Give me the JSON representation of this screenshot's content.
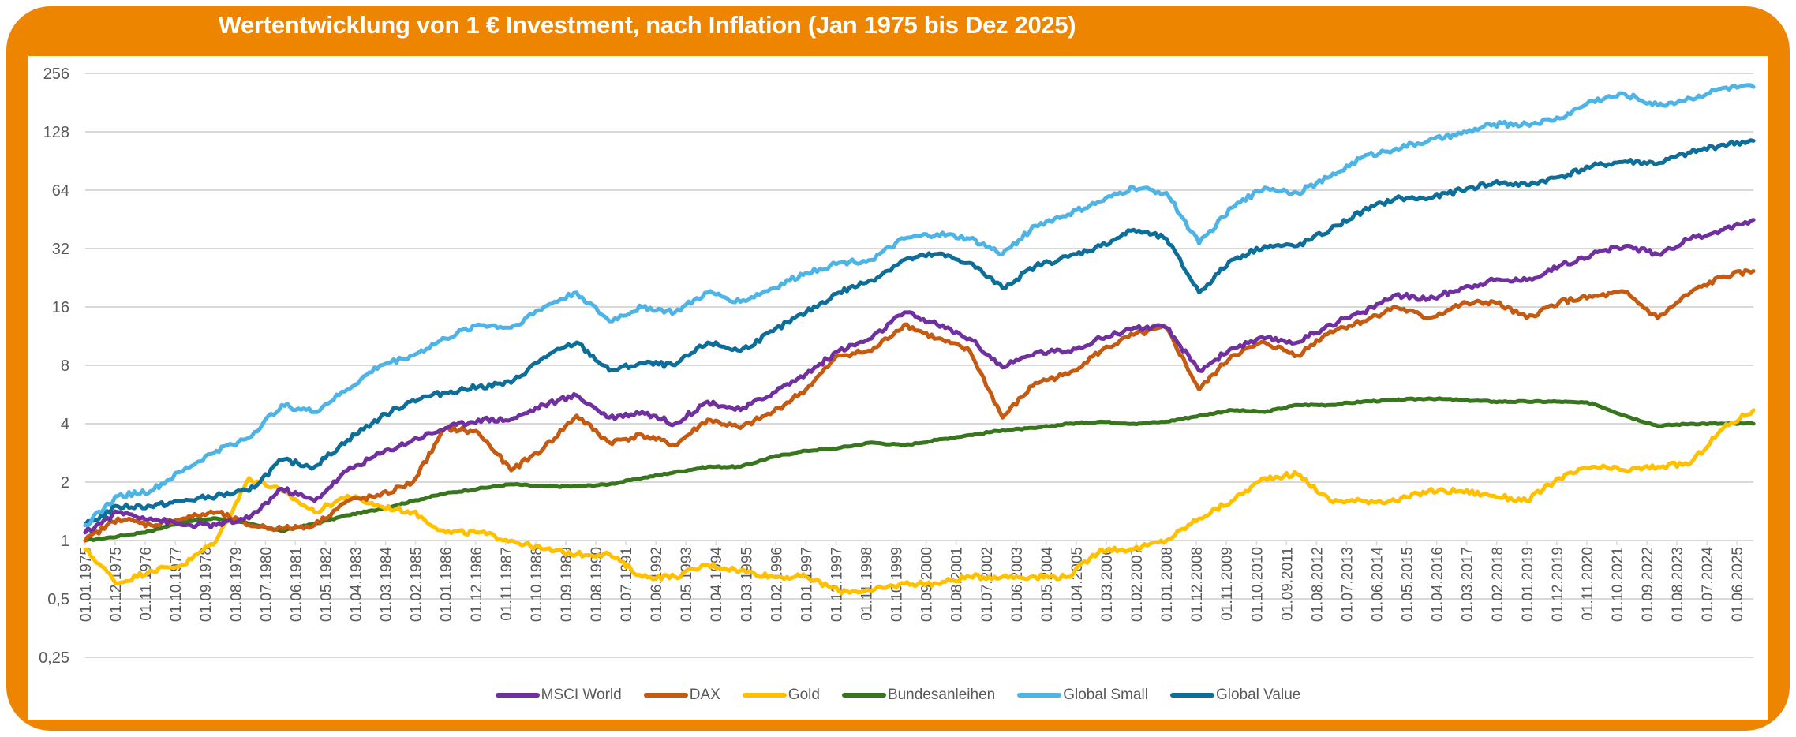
{
  "chart_data": {
    "type": "line",
    "title": "Wertentwicklung von 1 € Investment, nach Inflation (Jan 1975 bis Dez 2025)",
    "xlabel": "",
    "ylabel": "",
    "y_scale": "log2",
    "ylim": [
      0.25,
      256
    ],
    "y_ticks": [
      256,
      128,
      64,
      32,
      16,
      8,
      4,
      2,
      1,
      0.5,
      0.25
    ],
    "y_tick_labels": [
      "256",
      "128",
      "64",
      "32",
      "16",
      "8",
      "4",
      "2",
      "1",
      "0,5",
      "0,25"
    ],
    "x_start": "01.01.1975",
    "x_end": "01.12.2025",
    "x_tick_interval_months": 11,
    "x_tick_labels": [
      "01.01.1975",
      "01.12.1975",
      "01.11.1976",
      "01.10.1977",
      "01.09.1978",
      "01.08.1979",
      "01.07.1980",
      "01.06.1981",
      "01.05.1982",
      "01.04.1983",
      "01.03.1984",
      "01.02.1985",
      "01.01.1986",
      "01.12.1986",
      "01.11.1987",
      "01.10.1988",
      "01.09.1989",
      "01.08.1990",
      "01.07.1991",
      "01.06.1992",
      "01.05.1993",
      "01.04.1994",
      "01.03.1995",
      "01.02.1996",
      "01.01.1997",
      "01.12.1997",
      "01.11.1998",
      "01.10.1999",
      "01.09.2000",
      "01.08.2001",
      "01.07.2002",
      "01.06.2003",
      "01.05.2004",
      "01.04.2005",
      "01.03.2006",
      "01.02.2007",
      "01.01.2008",
      "01.12.2008",
      "01.11.2009",
      "01.10.2010",
      "01.09.2011",
      "01.08.2012",
      "01.07.2013",
      "01.06.2014",
      "01.05.2015",
      "01.04.2016",
      "01.03.2017",
      "01.02.2018",
      "01.01.2019",
      "01.12.2019",
      "01.11.2020",
      "01.10.2021",
      "01.09.2022",
      "01.08.2023",
      "01.07.2024",
      "01.06.2025"
    ],
    "x": [
      1975,
      1976,
      1977,
      1978,
      1979,
      1980,
      1981,
      1982,
      1983,
      1984,
      1985,
      1986,
      1987,
      1988,
      1989,
      1990,
      1991,
      1992,
      1993,
      1994,
      1995,
      1996,
      1997,
      1998,
      1999,
      2000,
      2001,
      2002,
      2003,
      2004,
      2005,
      2006,
      2007,
      2008,
      2009,
      2010,
      2011,
      2012,
      2013,
      2014,
      2015,
      2016,
      2017,
      2018,
      2019,
      2020,
      2021,
      2022,
      2023,
      2024,
      2025,
      2025.92
    ],
    "x_note": "annual samples (January of each year) plus December 2025",
    "grid": true,
    "legend_position": "bottom",
    "series": [
      {
        "name": "MSCI World",
        "color": "#7030A0",
        "values": [
          1.1,
          1.4,
          1.3,
          1.2,
          1.2,
          1.3,
          1.85,
          1.6,
          2.3,
          2.8,
          3.3,
          3.8,
          4.2,
          4.2,
          5.0,
          5.6,
          4.3,
          4.6,
          4.0,
          5.2,
          4.7,
          5.8,
          7.2,
          9.5,
          11,
          15,
          13,
          11,
          7.8,
          9.3,
          9.5,
          11,
          12.5,
          12.5,
          7.5,
          9.8,
          11,
          10.5,
          13,
          15,
          18.5,
          17.5,
          20,
          22,
          22,
          26,
          30,
          33,
          30,
          36,
          40,
          45
        ]
      },
      {
        "name": "DAX",
        "color": "#C55A11",
        "values": [
          1.0,
          1.3,
          1.2,
          1.3,
          1.4,
          1.2,
          1.15,
          1.2,
          1.6,
          1.7,
          2.0,
          3.8,
          3.6,
          2.3,
          3.0,
          4.4,
          3.2,
          3.5,
          3.1,
          4.2,
          3.8,
          4.6,
          6.0,
          9.0,
          9.5,
          13,
          11,
          9.5,
          4.3,
          6.5,
          7.2,
          9.5,
          11.5,
          12.5,
          6.0,
          9.0,
          10.5,
          9.0,
          12,
          13.5,
          16,
          14,
          16.5,
          17,
          14,
          17,
          18,
          19,
          14,
          19,
          23,
          24.5
        ]
      },
      {
        "name": "Gold",
        "color": "#FFC000",
        "values": [
          0.9,
          0.6,
          0.7,
          0.75,
          1.0,
          2.1,
          1.8,
          1.4,
          1.7,
          1.5,
          1.4,
          1.1,
          1.1,
          1.0,
          0.9,
          0.85,
          0.85,
          0.65,
          0.65,
          0.75,
          0.7,
          0.65,
          0.65,
          0.55,
          0.55,
          0.6,
          0.6,
          0.65,
          0.65,
          0.65,
          0.65,
          0.9,
          0.9,
          1.0,
          1.3,
          1.6,
          2.1,
          2.2,
          1.6,
          1.6,
          1.6,
          1.8,
          1.8,
          1.7,
          1.6,
          2.1,
          2.4,
          2.3,
          2.4,
          2.5,
          3.8,
          4.7
        ]
      },
      {
        "name": "Bundesanleihen",
        "color": "#38761D",
        "values": [
          1.0,
          1.05,
          1.12,
          1.25,
          1.3,
          1.22,
          1.12,
          1.22,
          1.35,
          1.45,
          1.6,
          1.75,
          1.85,
          1.95,
          1.9,
          1.9,
          1.95,
          2.1,
          2.25,
          2.4,
          2.4,
          2.7,
          2.9,
          3.0,
          3.2,
          3.1,
          3.3,
          3.5,
          3.7,
          3.8,
          4.0,
          4.1,
          4.0,
          4.1,
          4.4,
          4.7,
          4.6,
          5.0,
          5.0,
          5.2,
          5.3,
          5.4,
          5.3,
          5.2,
          5.2,
          5.2,
          5.1,
          4.4,
          3.9,
          4.0,
          4.0,
          4.0
        ]
      },
      {
        "name": "Global Small",
        "color": "#4EB3E5",
        "values": [
          1.2,
          1.7,
          1.8,
          2.3,
          2.9,
          3.4,
          5.0,
          4.6,
          6.0,
          8.0,
          9.0,
          11,
          13,
          12.5,
          16,
          19,
          13.5,
          16,
          15,
          19,
          17,
          20,
          24,
          27,
          28,
          36,
          38,
          36,
          30,
          42,
          48,
          56,
          66,
          62,
          34,
          52,
          66,
          62,
          75,
          95,
          105,
          115,
          125,
          140,
          140,
          150,
          185,
          200,
          175,
          190,
          215,
          218
        ]
      },
      {
        "name": "Global Value",
        "color": "#0E6E9A",
        "values": [
          1.2,
          1.5,
          1.5,
          1.6,
          1.7,
          1.8,
          2.6,
          2.4,
          3.3,
          4.3,
          5.3,
          5.8,
          6.2,
          6.5,
          8.8,
          10.5,
          7.5,
          8.2,
          8.0,
          10.5,
          9.5,
          12,
          15,
          19,
          22,
          28,
          30,
          27,
          20,
          26,
          29,
          33,
          40,
          36,
          19,
          28,
          33,
          33,
          40,
          50,
          58,
          58,
          64,
          70,
          68,
          75,
          85,
          90,
          88,
          100,
          110,
          115
        ]
      }
    ]
  }
}
